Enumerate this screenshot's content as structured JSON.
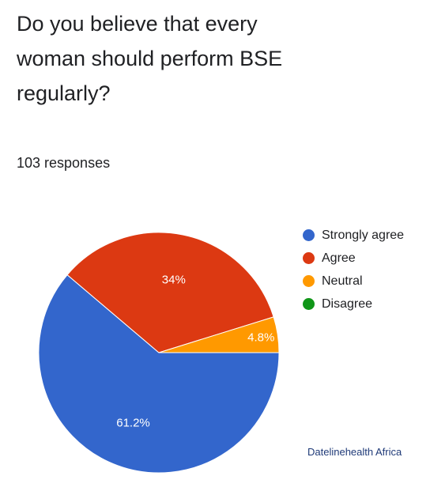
{
  "question": "Do you believe that every woman should perform BSE regularly?",
  "responses_label": "103 responses",
  "credit": "Datelinehealth Africa",
  "chart_data": {
    "type": "pie",
    "title": "Do you believe that every woman should perform BSE regularly?",
    "legend_position": "right",
    "slices": [
      {
        "label": "Strongly agree",
        "value": 61.2,
        "display": "61.2%",
        "color": "#3366cc"
      },
      {
        "label": "Agree",
        "value": 34,
        "display": "34%",
        "color": "#dc3912"
      },
      {
        "label": "Neutral",
        "value": 4.8,
        "display": "4.8%",
        "color": "#ff9900"
      },
      {
        "label": "Disagree",
        "value": 0,
        "display": "",
        "color": "#109618"
      }
    ]
  }
}
